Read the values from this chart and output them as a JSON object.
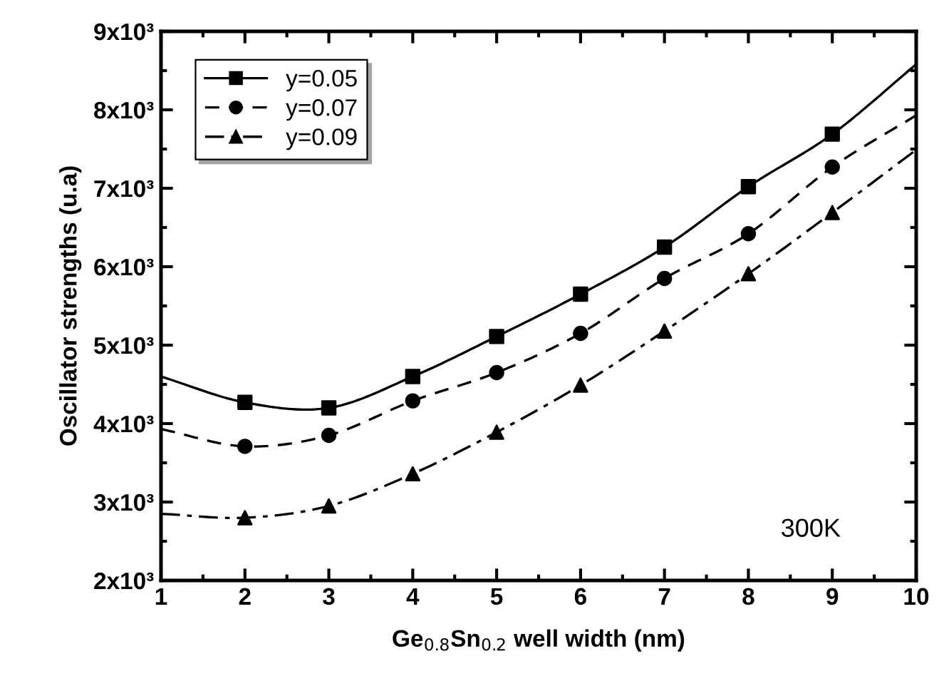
{
  "chart_data": {
    "type": "line",
    "xlabel": "Ge$_{0.8}$Sn$_{0.2}$ well width (nm)",
    "ylabel": "Oscillator strengths (u.a)",
    "xlim": [
      1,
      10
    ],
    "xticks": [
      1,
      2,
      3,
      4,
      5,
      6,
      7,
      8,
      9,
      10
    ],
    "ylim": [
      2000,
      9000
    ],
    "yticks": [
      {
        "value": 2000,
        "label": "2x10³"
      },
      {
        "value": 3000,
        "label": "3x10³"
      },
      {
        "value": 4000,
        "label": "4x10³"
      },
      {
        "value": 5000,
        "label": "5x10³"
      },
      {
        "value": 6000,
        "label": "6x10³"
      },
      {
        "value": 7000,
        "label": "7x10³"
      },
      {
        "value": 8000,
        "label": "8x10³"
      },
      {
        "value": 9000,
        "label": "9x10³"
      }
    ],
    "grid": false,
    "legend": "top left",
    "annotations": [
      "300K"
    ],
    "series": [
      {
        "color": "#000000",
        "line_style": "solid",
        "x": [
          1,
          2,
          3,
          4,
          5,
          6,
          7,
          8,
          9,
          10
        ],
        "values": [
          4600,
          4270,
          4200,
          4600,
          5110,
          5650,
          6250,
          7020,
          7690,
          8580
        ]
      },
      {
        "color": "#000000",
        "line_style": "dashed",
        "x": [
          1,
          2,
          3,
          4,
          5,
          6,
          7,
          8,
          9,
          10
        ],
        "values": [
          3930,
          3710,
          3850,
          4290,
          4650,
          5150,
          5850,
          6420,
          7270,
          7930
        ]
      },
      {
        "color": "#000000",
        "line_style": "dashdot",
        "x": [
          1,
          2,
          3,
          4,
          5,
          6,
          7,
          8,
          9,
          10
        ],
        "values": [
          2850,
          2800,
          2950,
          3360,
          3890,
          4490,
          5180,
          5910,
          6690,
          7490
        ]
      },
      {
        "type": "scatter",
        "name": "y=0.05",
        "color": "#000000",
        "marker": "square",
        "line_style": "solid",
        "x": [
          2,
          3,
          4,
          5,
          6,
          7,
          8,
          9
        ],
        "values": [
          4270,
          4200,
          4600,
          5110,
          5650,
          6250,
          7020,
          7690
        ]
      },
      {
        "type": "scatter",
        "name": "y=0.07",
        "color": "#000000",
        "marker": "circle",
        "line_style": "dashed",
        "x": [
          2,
          3,
          4,
          5,
          6,
          7,
          8,
          9
        ],
        "values": [
          3710,
          3850,
          4290,
          4650,
          5150,
          5850,
          6420,
          7270
        ]
      },
      {
        "type": "scatter",
        "name": "y=0.09",
        "color": "#000000",
        "marker": "triangle",
        "line_style": "dashdot",
        "x": [
          2,
          3,
          4,
          5,
          6,
          7,
          8,
          9
        ],
        "values": [
          2800,
          2950,
          3360,
          3890,
          4490,
          5180,
          5910,
          6690
        ]
      }
    ]
  }
}
